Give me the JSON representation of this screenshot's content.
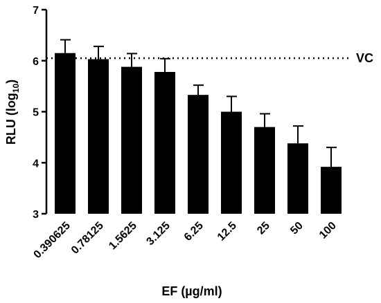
{
  "chart_data": {
    "type": "bar",
    "categories": [
      "0.390625",
      "0.78125",
      "1.5625",
      "3.125",
      "6.25",
      "12.5",
      "25",
      "50",
      "100"
    ],
    "values": [
      6.15,
      6.03,
      5.88,
      5.78,
      5.33,
      5.0,
      4.7,
      4.38,
      3.92
    ],
    "errors": [
      0.26,
      0.25,
      0.26,
      0.26,
      0.19,
      0.3,
      0.26,
      0.34,
      0.38
    ],
    "xlabel": "EF (µg/ml)",
    "ylabel_main": "RLU (log",
    "ylabel_sub": "10",
    "ylabel_close": ")",
    "ylim": [
      3,
      7
    ],
    "yticks": [
      "3",
      "4",
      "5",
      "6",
      "7"
    ],
    "reference_line": {
      "label": "VC",
      "value": 6.05,
      "style": "dotted"
    },
    "bar_color": "#000000",
    "grid": false
  }
}
